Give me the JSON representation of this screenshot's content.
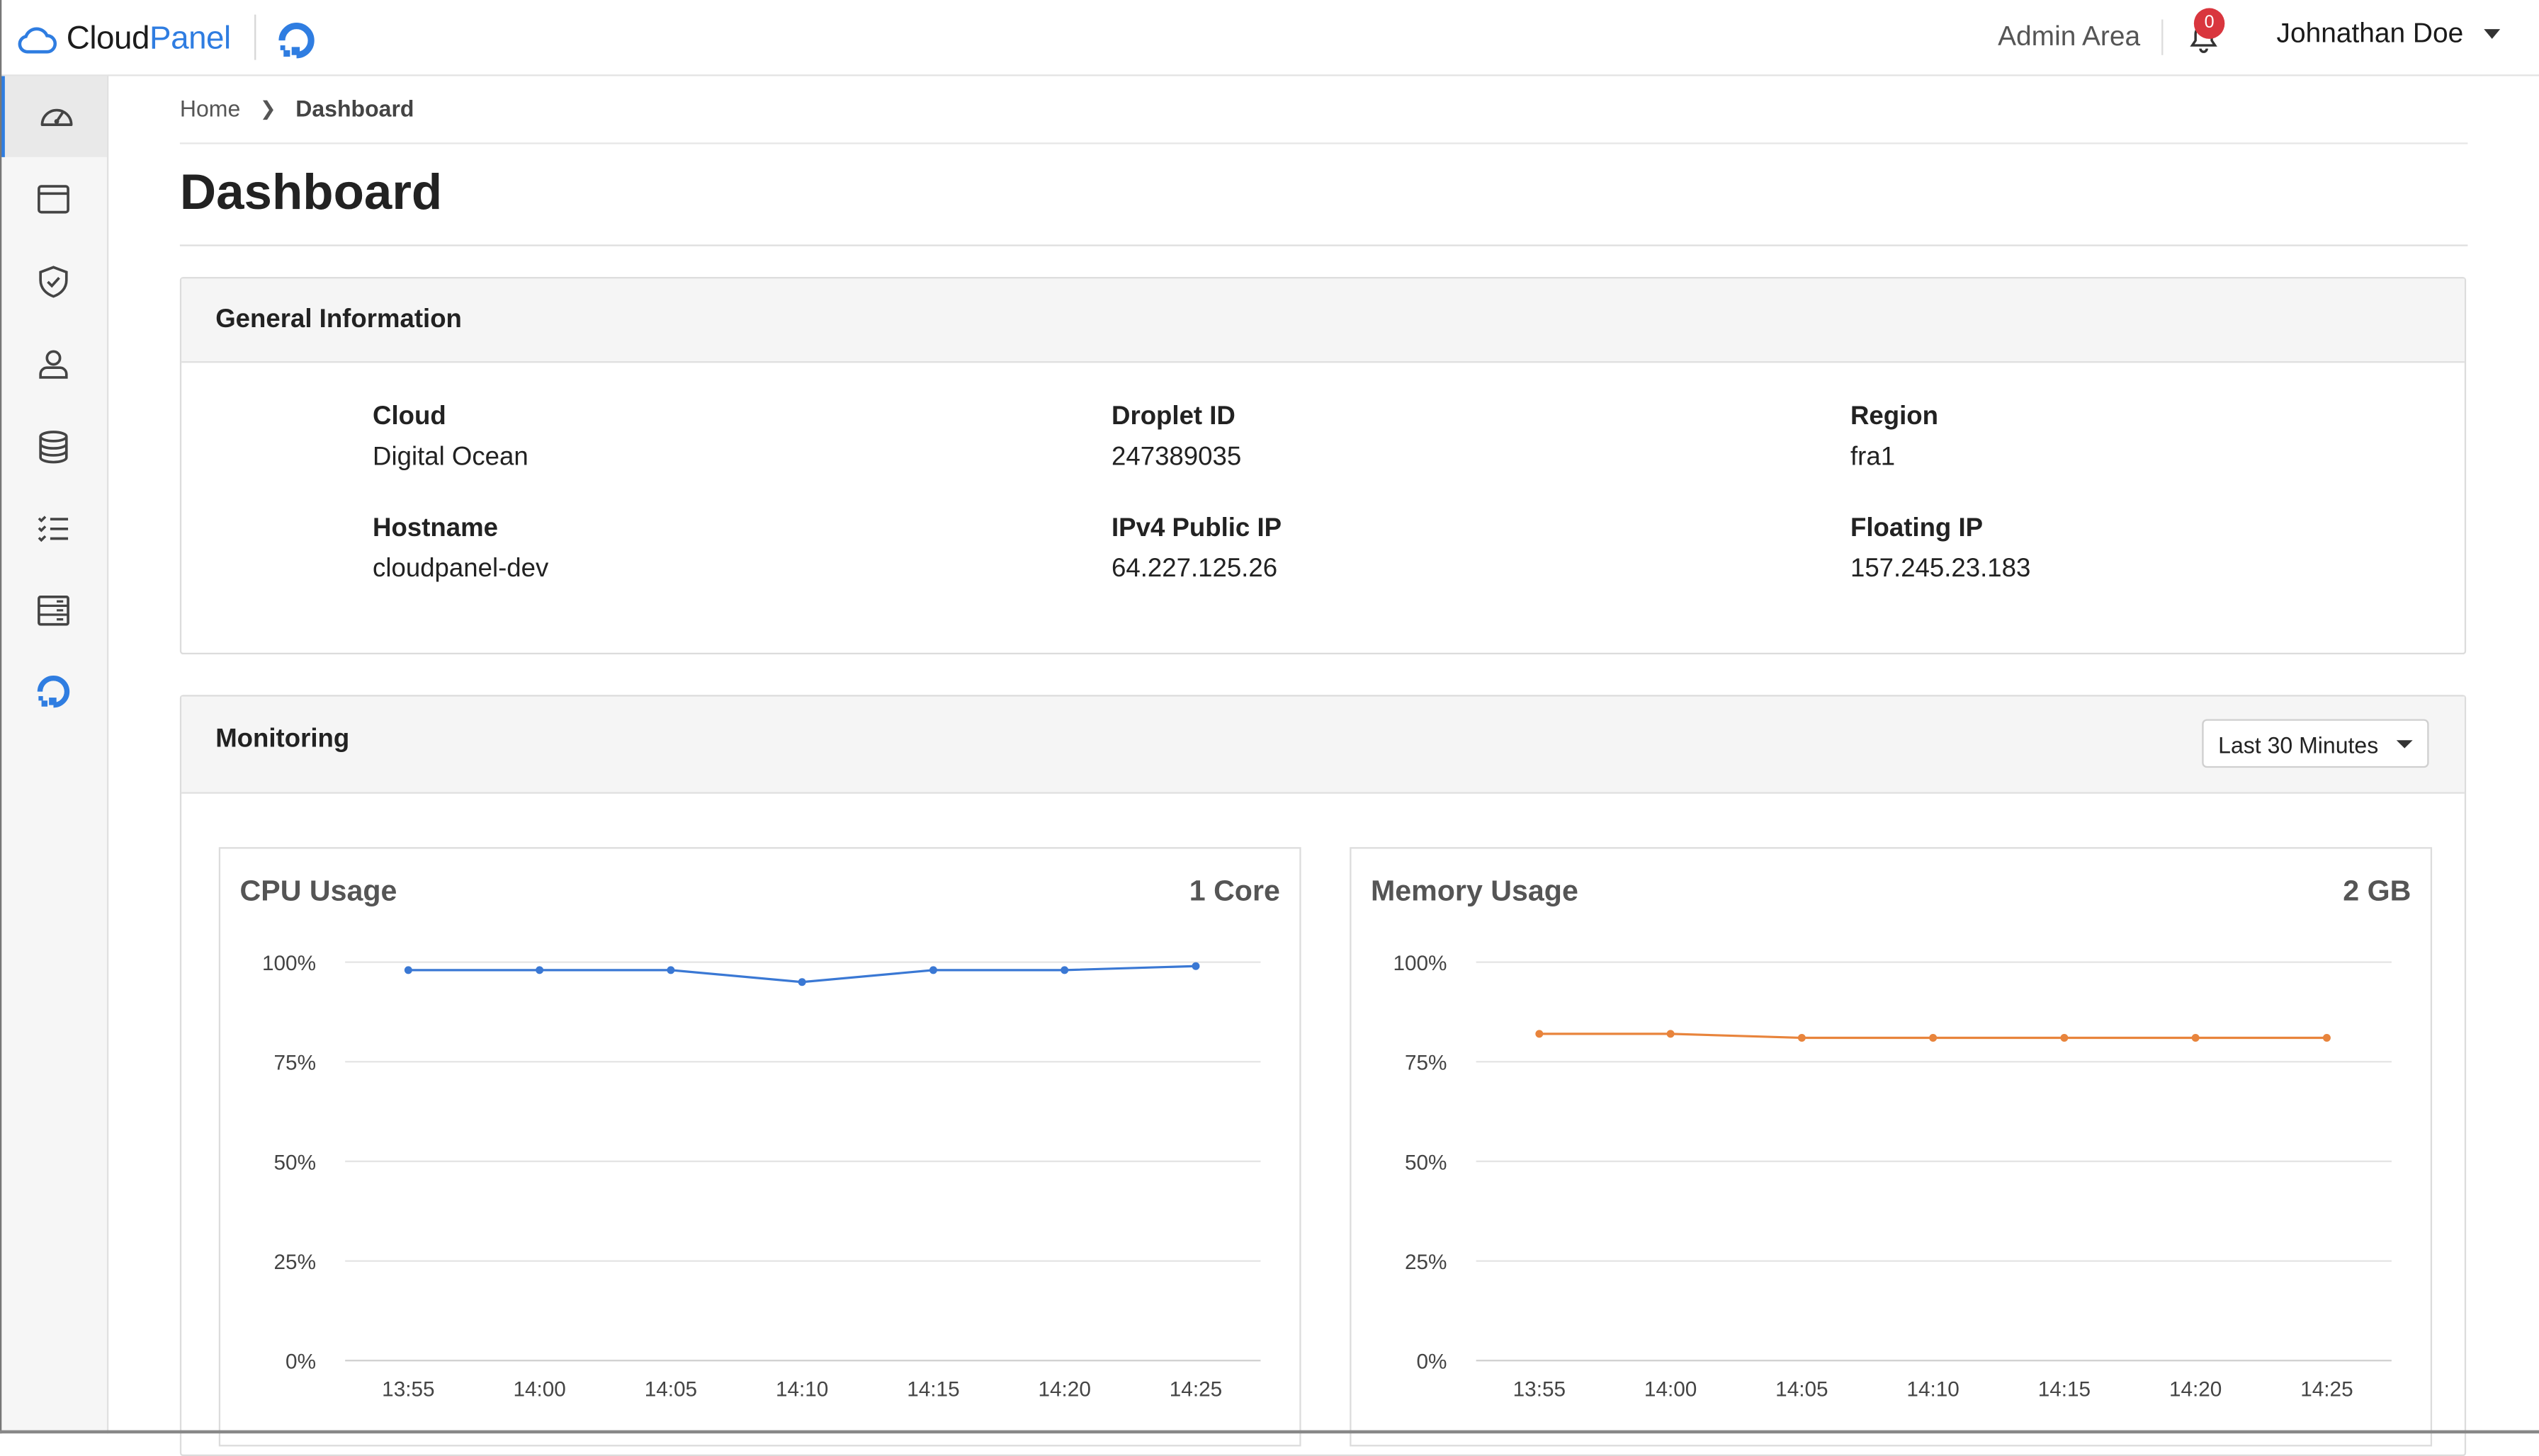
{
  "app": {
    "logo_text_cloud": "Cloud",
    "logo_text_panel": "Panel",
    "admin_area": "Admin Area",
    "notification_count": "0",
    "user_name": "Johnathan Doe"
  },
  "sidebar": {
    "items": [
      {
        "icon": "gauge-icon",
        "active": true
      },
      {
        "icon": "browser-window-icon"
      },
      {
        "icon": "shield-check-icon"
      },
      {
        "icon": "user-icon"
      },
      {
        "icon": "database-icon"
      },
      {
        "icon": "checklist-icon"
      },
      {
        "icon": "server-rack-icon"
      },
      {
        "icon": "digitalocean-icon"
      }
    ],
    "accent": "#2f7de1"
  },
  "breadcrumb": {
    "home": "Home",
    "current": "Dashboard"
  },
  "page": {
    "title": "Dashboard"
  },
  "general_info": {
    "title": "General Information",
    "fields": [
      {
        "label": "Cloud",
        "value": "Digital Ocean"
      },
      {
        "label": "Droplet ID",
        "value": "247389035"
      },
      {
        "label": "Region",
        "value": "fra1"
      },
      {
        "label": "Hostname",
        "value": "cloudpanel-dev"
      },
      {
        "label": "IPv4 Public IP",
        "value": "64.227.125.26"
      },
      {
        "label": "Floating IP",
        "value": "157.245.23.183"
      }
    ]
  },
  "monitoring": {
    "title": "Monitoring",
    "range_selected": "Last 30 Minutes"
  },
  "chart_data": [
    {
      "type": "line",
      "title": "CPU Usage",
      "subtitle": "1 Core",
      "x": [
        "13:55",
        "14:00",
        "14:05",
        "14:10",
        "14:15",
        "14:20",
        "14:25"
      ],
      "series": [
        {
          "values": [
            98,
            98,
            98,
            95,
            98,
            98,
            99
          ],
          "color": "#3a78d4"
        }
      ],
      "y_ticks": [
        "100%",
        "75%",
        "50%",
        "25%",
        "0%"
      ],
      "ylim": [
        0,
        100
      ],
      "grid": true
    },
    {
      "type": "line",
      "title": "Memory Usage",
      "subtitle": "2 GB",
      "x": [
        "13:55",
        "14:00",
        "14:05",
        "14:10",
        "14:15",
        "14:20",
        "14:25"
      ],
      "series": [
        {
          "values": [
            82,
            82,
            81,
            81,
            81,
            81,
            81
          ],
          "color": "#e8843c"
        }
      ],
      "y_ticks": [
        "100%",
        "75%",
        "50%",
        "25%",
        "0%"
      ],
      "ylim": [
        0,
        100
      ],
      "grid": true
    }
  ]
}
